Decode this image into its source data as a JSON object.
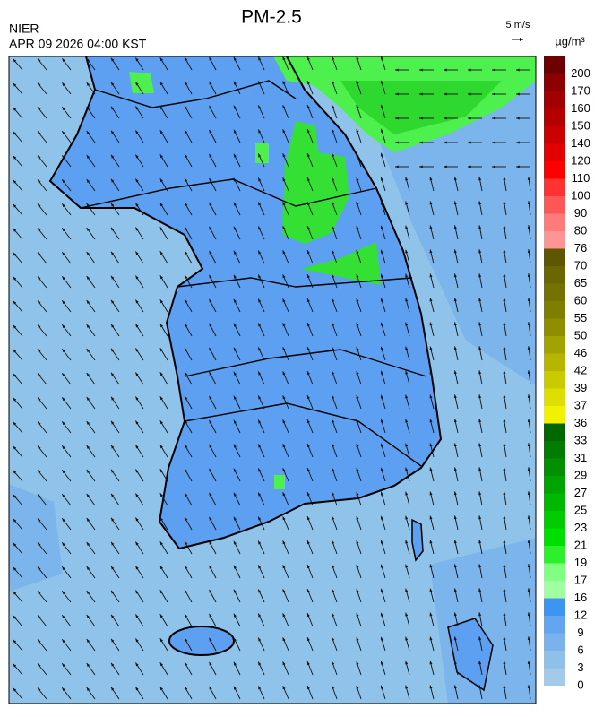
{
  "header": {
    "title": "PM-2.5",
    "agency": "NIER",
    "timestamp": "APR 09 2026 04:00 KST",
    "wind_scale": "5 m/s"
  },
  "colorbar": {
    "unit": "µg/m³",
    "levels": [
      0,
      3,
      6,
      9,
      12,
      16,
      17,
      19,
      21,
      23,
      25,
      27,
      29,
      31,
      33,
      36,
      37,
      39,
      42,
      46,
      50,
      55,
      60,
      65,
      70,
      76,
      80,
      90,
      100,
      110,
      120,
      140,
      150,
      160,
      170,
      200
    ],
    "colors": [
      "#a2cbe9",
      "#8fc0ea",
      "#7ab3ec",
      "#63a5f0",
      "#3d95f2",
      "#a0ffa0",
      "#80ff80",
      "#2cf02c",
      "#00e000",
      "#00cc00",
      "#00b800",
      "#00a400",
      "#009000",
      "#007c00",
      "#006800",
      "#f2f200",
      "#dede00",
      "#caca00",
      "#b6b600",
      "#a2a200",
      "#8e8e00",
      "#7e7e00",
      "#747200",
      "#6a6600",
      "#5e5600",
      "#ff9494",
      "#ff7a7a",
      "#ff5656",
      "#ff3232",
      "#ff0000",
      "#e40000",
      "#cc0000",
      "#b60000",
      "#a20000",
      "#8c0000",
      "#6e0000"
    ]
  }
}
